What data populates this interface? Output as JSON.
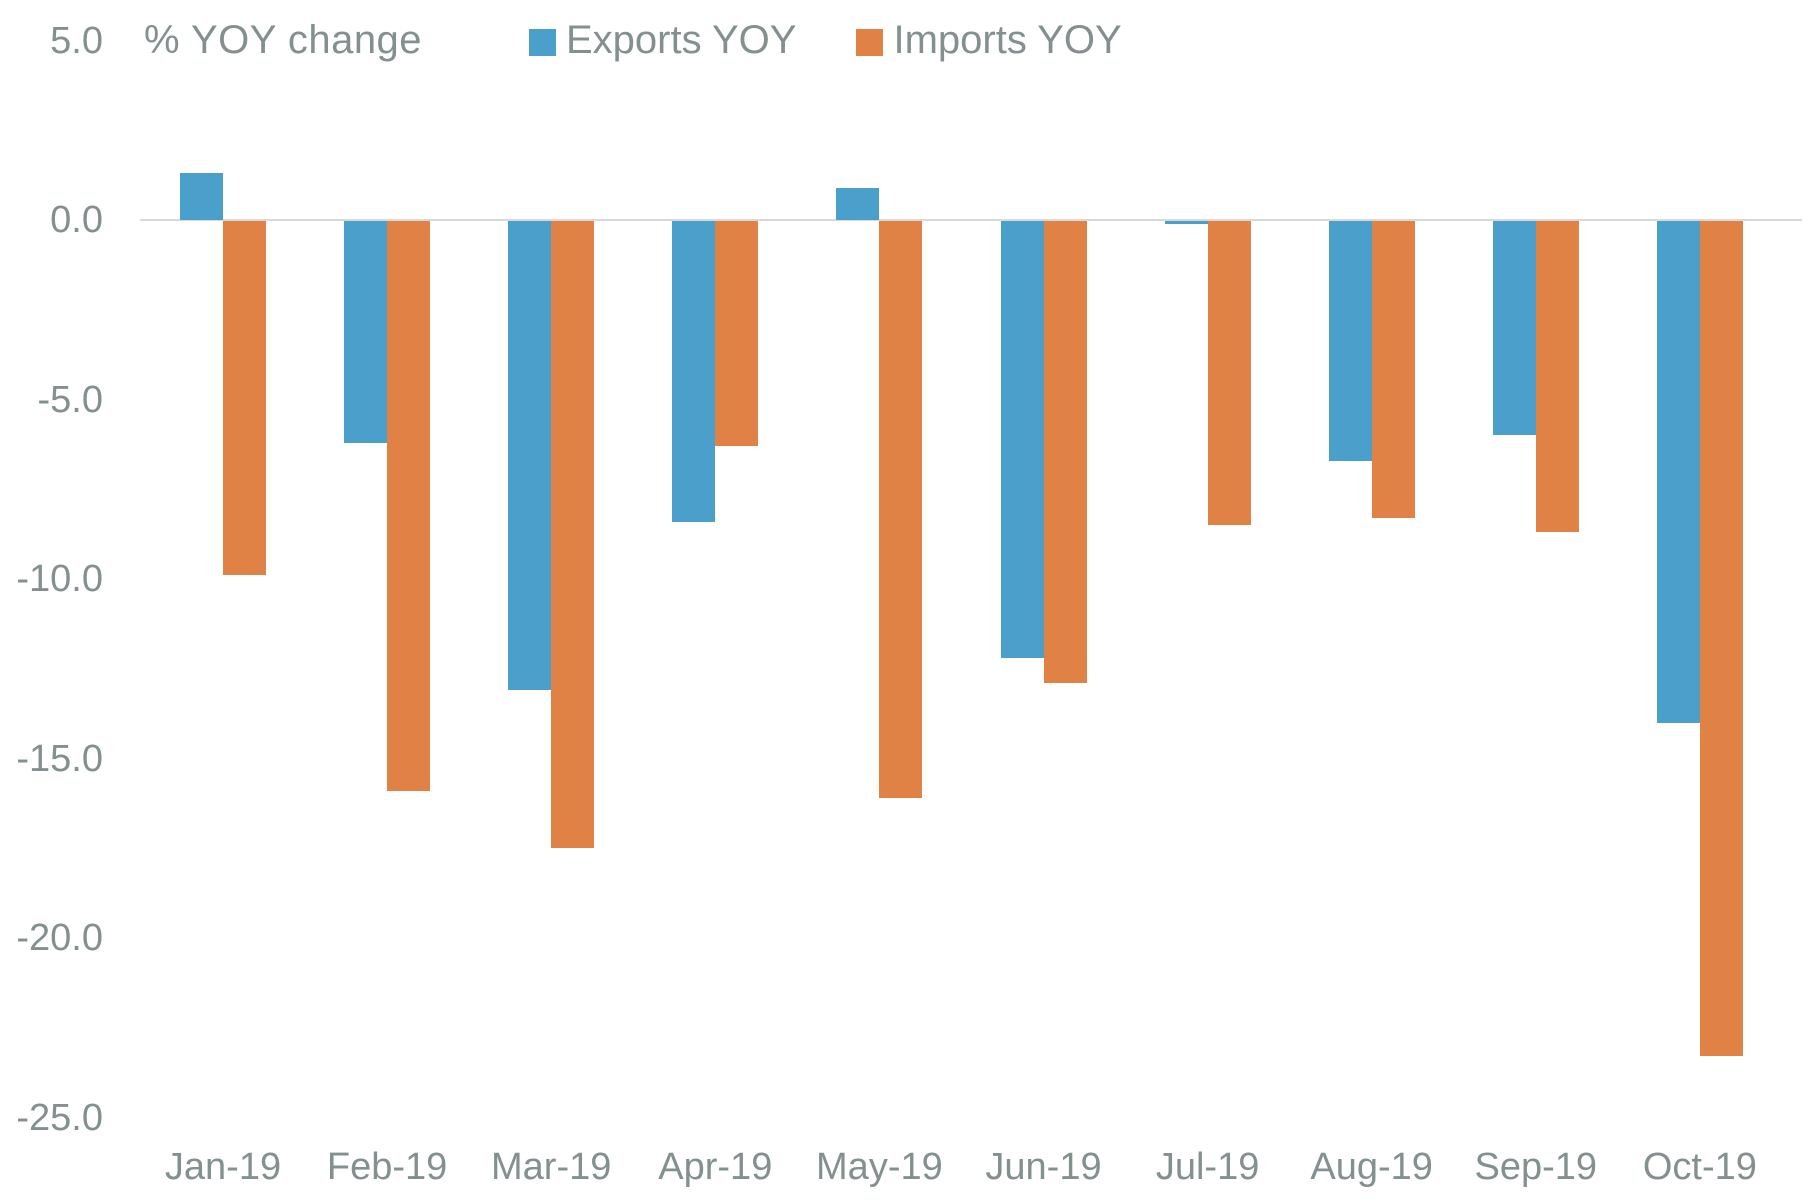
{
  "chart_data": {
    "type": "bar",
    "title": "% YOY change",
    "categories": [
      "Jan-19",
      "Feb-19",
      "Mar-19",
      "Apr-19",
      "May-19",
      "Jun-19",
      "Jul-19",
      "Aug-19",
      "Sep-19",
      "Oct-19"
    ],
    "series": [
      {
        "name": "Exports YOY",
        "color": "#4AA0CB",
        "values": [
          1.3,
          -6.2,
          -13.1,
          -8.4,
          0.9,
          -12.2,
          -0.1,
          -6.7,
          -6.0,
          -14.0
        ]
      },
      {
        "name": "Imports YOY",
        "color": "#E08245",
        "values": [
          -9.9,
          -15.9,
          -17.5,
          -6.3,
          -16.1,
          -12.9,
          -8.5,
          -8.3,
          -8.7,
          -23.3
        ]
      }
    ],
    "yticks": [
      5.0,
      0.0,
      -5.0,
      -10.0,
      -15.0,
      -20.0,
      -25.0
    ],
    "ylim": [
      -25.0,
      5.0
    ],
    "xlabel": "",
    "ylabel": "% YOY change",
    "grid": "zero-baseline-only",
    "legend_position": "top"
  },
  "colors": {
    "exports_blue": "#4AA0CB",
    "imports_orange": "#E08245",
    "axis_text_gray": "#849090",
    "baseline_gray": "#D9D9D9",
    "background": "#FFFFFF"
  }
}
